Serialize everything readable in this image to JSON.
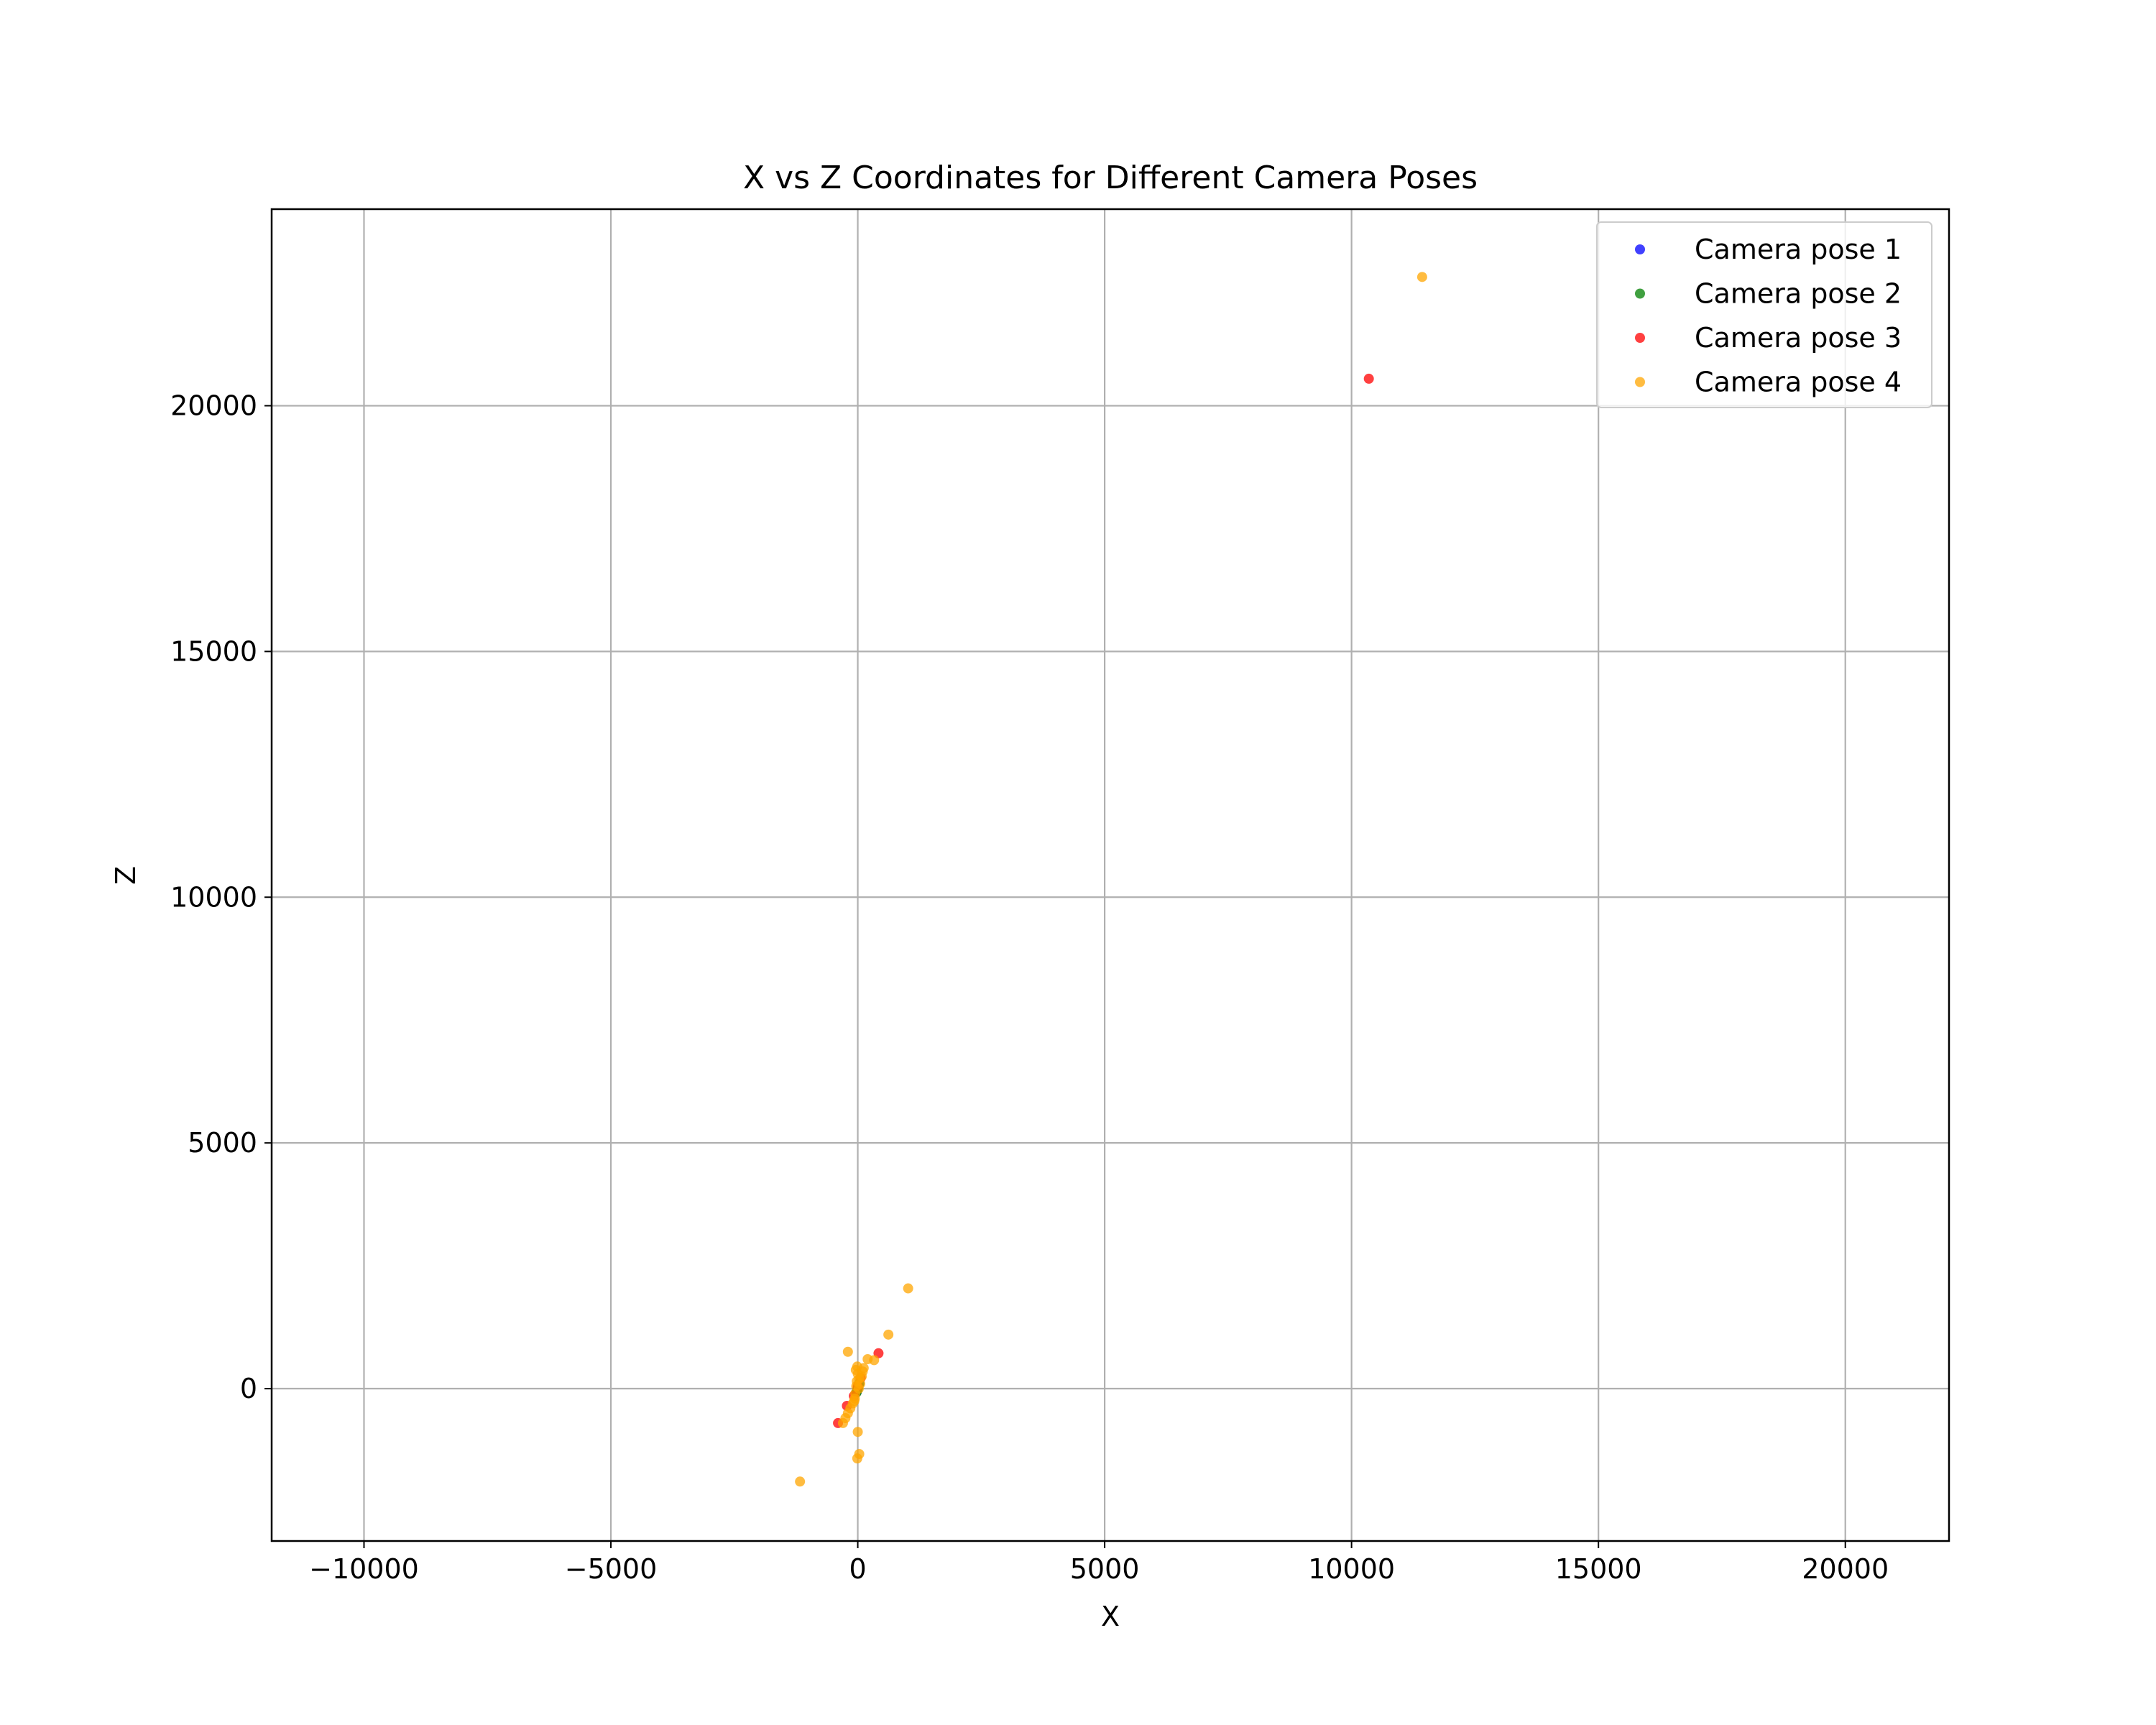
{
  "chart_data": {
    "type": "scatter",
    "title": "X vs Z Coordinates for Different Camera Poses",
    "xlabel": "X",
    "ylabel": "Z",
    "xlim": [
      -11870,
      22100
    ],
    "ylim": [
      -3100,
      24000
    ],
    "xticks": [
      -10000,
      -5000,
      0,
      5000,
      10000,
      15000,
      20000
    ],
    "xtick_labels": [
      "−10000",
      "−5000",
      "0",
      "5000",
      "10000",
      "15000",
      "20000"
    ],
    "yticks": [
      0,
      5000,
      10000,
      15000,
      20000
    ],
    "ytick_labels": [
      "0",
      "5000",
      "10000",
      "15000",
      "20000"
    ],
    "grid": true,
    "legend_position": "top-right",
    "series": [
      {
        "name": "Camera pose 1",
        "color": "#0000ff",
        "points": [
          [
            -5,
            -20
          ],
          [
            10,
            40
          ],
          [
            -20,
            -60
          ],
          [
            25,
            90
          ],
          [
            0,
            10
          ]
        ]
      },
      {
        "name": "Camera pose 2",
        "color": "#008000",
        "points": [
          [
            -8,
            -30
          ],
          [
            15,
            60
          ],
          [
            -25,
            -80
          ],
          [
            30,
            110
          ],
          [
            5,
            20
          ]
        ]
      },
      {
        "name": "Camera pose 3",
        "color": "#ff0000",
        "points": [
          [
            10350,
            20550
          ],
          [
            -400,
            -700
          ],
          [
            -220,
            -350
          ],
          [
            420,
            720
          ],
          [
            -80,
            -150
          ],
          [
            60,
            220
          ],
          [
            0,
            50
          ]
        ]
      },
      {
        "name": "Camera pose 4",
        "color": "#ffa500",
        "points": [
          [
            11430,
            22620
          ],
          [
            1020,
            2040
          ],
          [
            620,
            1100
          ],
          [
            -200,
            750
          ],
          [
            200,
            600
          ],
          [
            330,
            580
          ],
          [
            100,
            350
          ],
          [
            -10,
            450
          ],
          [
            0,
            300
          ],
          [
            30,
            200
          ],
          [
            -20,
            150
          ],
          [
            50,
            100
          ],
          [
            -30,
            50
          ],
          [
            20,
            0
          ],
          [
            -50,
            -100
          ],
          [
            -60,
            -200
          ],
          [
            -100,
            -300
          ],
          [
            -150,
            -400
          ],
          [
            -200,
            -500
          ],
          [
            -250,
            -600
          ],
          [
            -300,
            -700
          ],
          [
            0,
            -880
          ],
          [
            30,
            -1330
          ],
          [
            -10,
            -1420
          ],
          [
            -1170,
            -1890
          ],
          [
            80,
            250
          ],
          [
            -40,
            380
          ],
          [
            120,
            420
          ],
          [
            -70,
            -250
          ]
        ]
      }
    ]
  }
}
